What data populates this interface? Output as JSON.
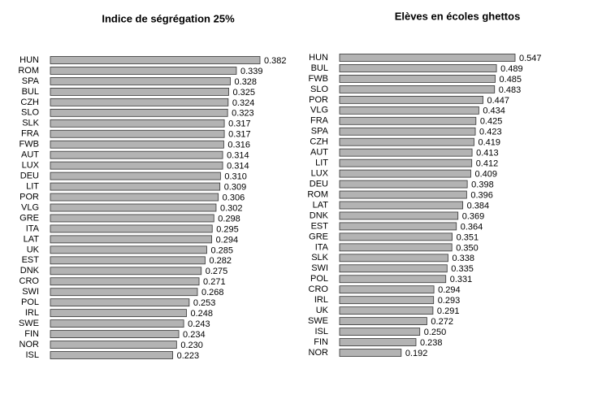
{
  "chart_data": [
    {
      "type": "barh",
      "title": "Indice de ségrégation 25%",
      "color": "#b3b3b3",
      "categories": [
        "HUN",
        "ROM",
        "SPA",
        "BUL",
        "CZH",
        "SLO",
        "SLK",
        "FRA",
        "FWB",
        "AUT",
        "LUX",
        "DEU",
        "LIT",
        "POR",
        "VLG",
        "GRE",
        "ITA",
        "LAT",
        "UK",
        "EST",
        "DNK",
        "CRO",
        "SWI",
        "POL",
        "IRL",
        "SWE",
        "FIN",
        "NOR",
        "ISL"
      ],
      "values": [
        0.382,
        0.339,
        0.328,
        0.325,
        0.324,
        0.323,
        0.317,
        0.317,
        0.316,
        0.314,
        0.314,
        0.31,
        0.309,
        0.306,
        0.302,
        0.298,
        0.295,
        0.294,
        0.285,
        0.282,
        0.275,
        0.271,
        0.268,
        0.253,
        0.248,
        0.243,
        0.234,
        0.23,
        0.223
      ],
      "value_labels": [
        "0.382",
        "0.339",
        "0.328",
        "0.325",
        "0.324",
        "0.323",
        "0.317",
        "0.317",
        "0.316",
        "0.314",
        "0.314",
        "0.310",
        "0.309",
        "0.306",
        "0.302",
        "0.298",
        "0.295",
        "0.294",
        "0.285",
        "0.282",
        "0.275",
        "0.271",
        "0.268",
        "0.253",
        "0.248",
        "0.243",
        "0.234",
        "0.230",
        "0.223"
      ]
    },
    {
      "type": "barh",
      "title": "Elèves en écoles ghettos",
      "color": "#b3b3b3",
      "categories": [
        "HUN",
        "BUL",
        "FWB",
        "SLO",
        "POR",
        "VLG",
        "FRA",
        "SPA",
        "CZH",
        "AUT",
        "LIT",
        "LUX",
        "DEU",
        "ROM",
        "LAT",
        "DNK",
        "EST",
        "GRE",
        "ITA",
        "SLK",
        "SWI",
        "POL",
        "CRO",
        "IRL",
        "UK",
        "SWE",
        "ISL",
        "FIN",
        "NOR"
      ],
      "values": [
        0.547,
        0.489,
        0.485,
        0.483,
        0.447,
        0.434,
        0.425,
        0.423,
        0.419,
        0.413,
        0.412,
        0.409,
        0.398,
        0.396,
        0.384,
        0.369,
        0.364,
        0.351,
        0.35,
        0.338,
        0.335,
        0.331,
        0.294,
        0.293,
        0.291,
        0.272,
        0.25,
        0.238,
        0.192
      ],
      "value_labels": [
        "0.547",
        "0.489",
        "0.485",
        "0.483",
        "0.447",
        "0.434",
        "0.425",
        "0.423",
        "0.419",
        "0.413",
        "0.412",
        "0.409",
        "0.398",
        "0.396",
        "0.384",
        "0.369",
        "0.364",
        "0.351",
        "0.350",
        "0.338",
        "0.335",
        "0.331",
        "0.294",
        "0.293",
        "0.291",
        "0.272",
        "0.250",
        "0.238",
        "0.192"
      ]
    }
  ]
}
